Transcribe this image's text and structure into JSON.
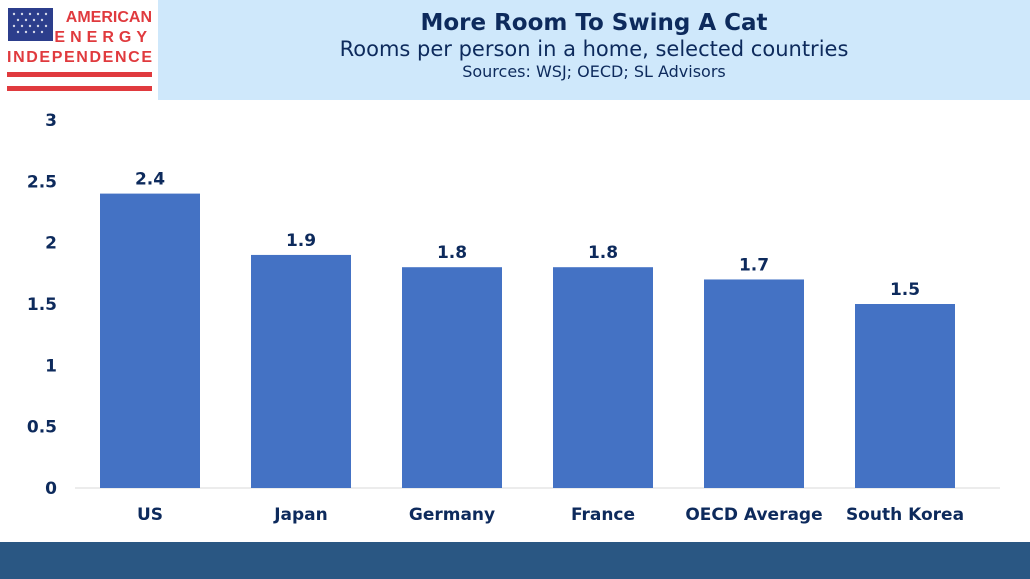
{
  "logo": {
    "line1": "AMERICAN",
    "line2": "ENERGY",
    "line3": "INDEPENDENCE",
    "colors": {
      "red": "#e03a3e",
      "blue": "#2c3e8c"
    }
  },
  "header": {
    "title": "More Room To Swing A Cat",
    "subtitle": "Rooms per person in a home, selected countries",
    "sources": "Sources: WSJ; OECD; SL Advisors"
  },
  "chart_data": {
    "type": "bar",
    "categories": [
      "US",
      "Japan",
      "Germany",
      "France",
      "OECD Average",
      "South Korea"
    ],
    "values": [
      2.4,
      1.9,
      1.8,
      1.8,
      1.7,
      1.5
    ],
    "data_labels": [
      "2.4",
      "1.9",
      "1.8",
      "1.8",
      "1.7",
      "1.5"
    ],
    "ylim": [
      0,
      3
    ],
    "yticks": [
      "0",
      "0.5",
      "1",
      "1.5",
      "2",
      "2.5",
      "3"
    ],
    "grid": false,
    "bar_color": "#4472c4",
    "text_color": "#0d2a5c"
  }
}
